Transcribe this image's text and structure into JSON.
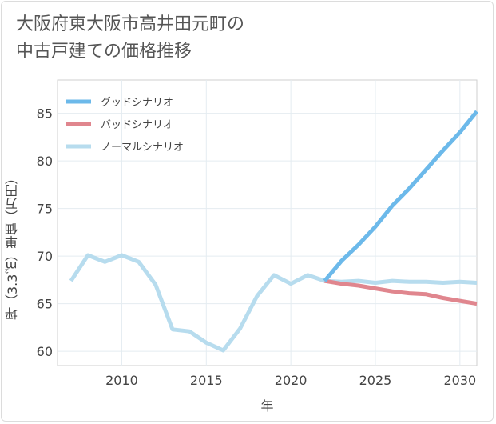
{
  "title_lines": [
    "大阪府東大阪市高井田元町の",
    "中古戸建ての価格推移"
  ],
  "chart_data": {
    "type": "line",
    "title": "大阪府東大阪市高井田元町の中古戸建ての価格推移",
    "xlabel": "年",
    "ylabel": "坪（3.3㎡）単価（万円）",
    "xlim": [
      2006.2,
      2031
    ],
    "ylim": [
      58.5,
      88.5
    ],
    "xticks": [
      2010,
      2015,
      2020,
      2025,
      2030
    ],
    "yticks": [
      60,
      65,
      70,
      75,
      80,
      85
    ],
    "grid": true,
    "legend_position": "top-left",
    "series": [
      {
        "name": "グッドシナリオ",
        "color": "#6cb9ea",
        "x": [
          2022,
          2023,
          2024,
          2025,
          2026,
          2027,
          2028,
          2029,
          2030,
          2031
        ],
        "y": [
          67.4,
          69.5,
          71.2,
          73.1,
          75.3,
          77.1,
          79.1,
          81.1,
          83.0,
          85.2
        ]
      },
      {
        "name": "バッドシナリオ",
        "color": "#e0868e",
        "x": [
          2022,
          2023,
          2024,
          2025,
          2026,
          2027,
          2028,
          2029,
          2030,
          2031
        ],
        "y": [
          67.4,
          67.1,
          66.9,
          66.6,
          66.3,
          66.1,
          66.0,
          65.6,
          65.3,
          65.0
        ]
      },
      {
        "name": "ノーマルシナリオ",
        "color": "#b7dcee",
        "x": [
          2007,
          2008,
          2009,
          2010,
          2011,
          2012,
          2013,
          2014,
          2015,
          2016,
          2017,
          2018,
          2019,
          2020,
          2021,
          2022,
          2023,
          2024,
          2025,
          2026,
          2027,
          2028,
          2029,
          2030,
          2031
        ],
        "y": [
          67.4,
          70.1,
          69.4,
          70.1,
          69.4,
          67.0,
          62.3,
          62.1,
          60.9,
          60.1,
          62.4,
          65.8,
          68.0,
          67.1,
          68.0,
          67.4,
          67.3,
          67.4,
          67.2,
          67.4,
          67.3,
          67.3,
          67.2,
          67.3,
          67.2
        ]
      }
    ]
  }
}
